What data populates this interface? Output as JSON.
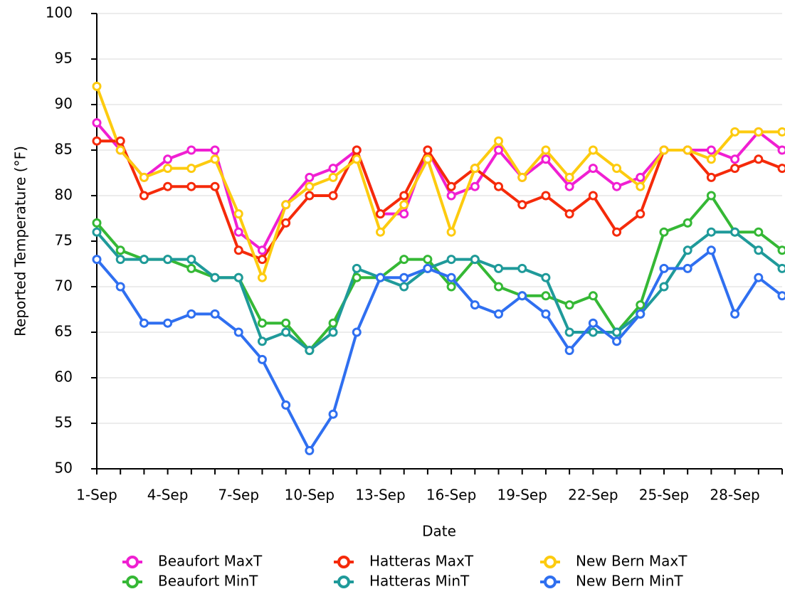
{
  "chart_data": {
    "type": "line",
    "x_label": "Date",
    "y_label": "Reported Temperature (°F)",
    "categories": [
      "1-Sep",
      null,
      null,
      "4-Sep",
      null,
      null,
      "7-Sep",
      null,
      null,
      "10-Sep",
      null,
      null,
      "13-Sep",
      null,
      null,
      "16-Sep",
      null,
      null,
      "19-Sep",
      null,
      null,
      "22-Sep",
      null,
      null,
      "25-Sep",
      null,
      null,
      "28-Sep",
      null,
      null
    ],
    "series": [
      {
        "name": "Beaufort MaxT",
        "color": "#f01fd2",
        "values": [
          88,
          85,
          82,
          84,
          85,
          85,
          76,
          74,
          79,
          82,
          83,
          85,
          78,
          78,
          85,
          80,
          81,
          85,
          82,
          84,
          81,
          83,
          81,
          82,
          85,
          85,
          85,
          84,
          87,
          85
        ]
      },
      {
        "name": "Hatteras MaxT",
        "color": "#f52a0a",
        "values": [
          86,
          86,
          80,
          81,
          81,
          81,
          74,
          73,
          77,
          80,
          80,
          85,
          78,
          80,
          85,
          81,
          83,
          81,
          79,
          80,
          78,
          80,
          76,
          78,
          85,
          85,
          82,
          83,
          84,
          83
        ]
      },
      {
        "name": "New Bern MaxT",
        "color": "#fdcb0f",
        "values": [
          92,
          85,
          82,
          83,
          83,
          84,
          78,
          71,
          79,
          81,
          82,
          84,
          76,
          79,
          84,
          76,
          83,
          86,
          82,
          85,
          82,
          85,
          83,
          81,
          85,
          85,
          84,
          87,
          87,
          87
        ]
      },
      {
        "name": "Beaufort MinT",
        "color": "#35b835",
        "values": [
          77,
          74,
          73,
          73,
          72,
          71,
          71,
          66,
          66,
          63,
          66,
          71,
          71,
          73,
          73,
          70,
          73,
          70,
          69,
          69,
          68,
          69,
          65,
          68,
          76,
          77,
          80,
          76,
          76,
          74
        ]
      },
      {
        "name": "Hatteras MinT",
        "color": "#1f9a9a",
        "values": [
          76,
          73,
          73,
          73,
          73,
          71,
          71,
          64,
          65,
          63,
          65,
          72,
          71,
          70,
          72,
          73,
          73,
          72,
          72,
          71,
          65,
          65,
          65,
          67,
          70,
          74,
          76,
          76,
          74,
          72
        ]
      },
      {
        "name": "New Bern MinT",
        "color": "#2f6ff0",
        "values": [
          73,
          70,
          66,
          66,
          67,
          67,
          65,
          62,
          57,
          52,
          56,
          65,
          71,
          71,
          72,
          71,
          68,
          67,
          69,
          67,
          63,
          66,
          64,
          67,
          72,
          72,
          74,
          67,
          71,
          69
        ]
      }
    ],
    "ylim": [
      50,
      100
    ],
    "yticks": [
      50,
      55,
      60,
      65,
      70,
      75,
      80,
      85,
      90,
      95,
      100
    ],
    "grid": true
  }
}
